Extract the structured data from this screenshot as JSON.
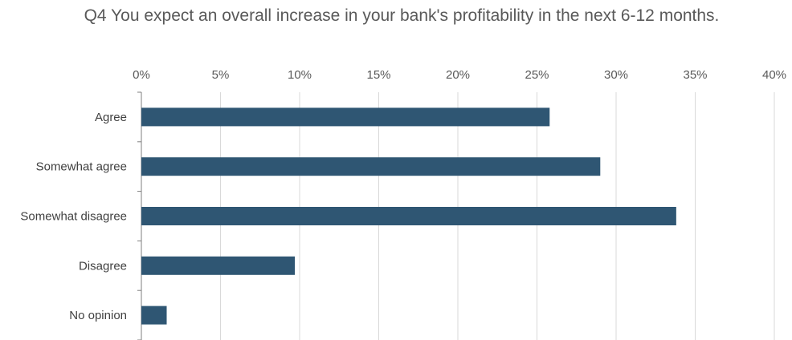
{
  "chart_data": {
    "type": "bar",
    "orientation": "horizontal",
    "title": "Q4 You expect an overall increase in your bank's profitability in the next 6-12 months.",
    "categories": [
      "Agree",
      "Somewhat agree",
      "Somewhat disagree",
      "Disagree",
      "No opinion"
    ],
    "values": [
      25.8,
      29.0,
      33.8,
      9.7,
      1.6
    ],
    "value_unit": "%",
    "xlim": [
      0,
      40
    ],
    "x_ticks": [
      "0%",
      "5%",
      "10%",
      "15%",
      "20%",
      "25%",
      "30%",
      "35%",
      "40%"
    ],
    "x_axis_position": "top",
    "grid": true,
    "legend": "none",
    "colors": {
      "bar": "#2f5673",
      "grid": "#d9d9d9",
      "axis": "#7f7f7f",
      "text": "#595959"
    }
  }
}
